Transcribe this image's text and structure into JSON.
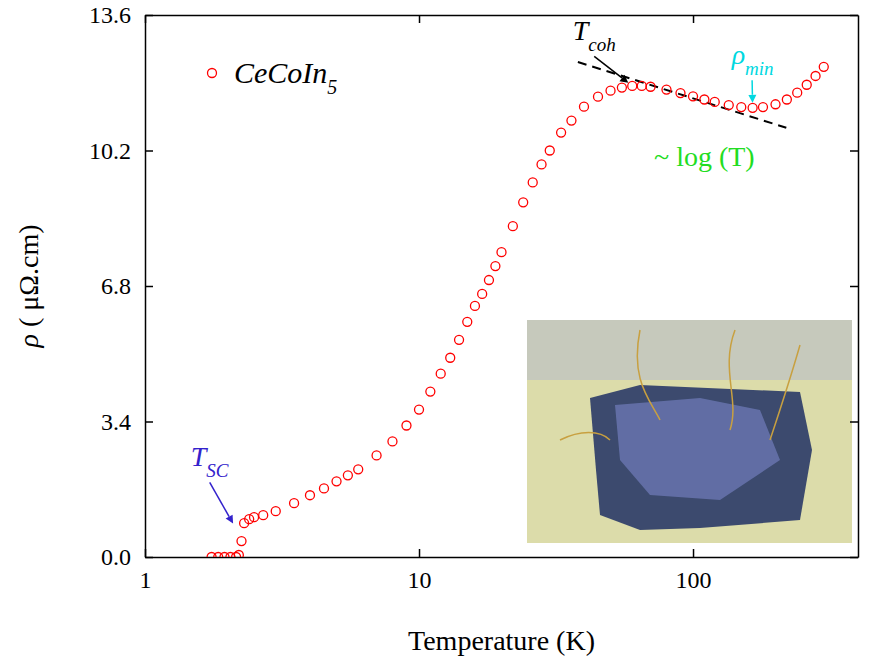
{
  "chart_data": {
    "type": "scatter",
    "x_label": "Temperature (K)",
    "y_label": "ρ ( μΩ.cm)",
    "log": "x",
    "xlim": [
      1,
      400
    ],
    "xticks": [
      1,
      10,
      100
    ],
    "ylim": [
      0,
      13.6
    ],
    "yticks": [
      {
        "value": 0,
        "label": "0.0"
      },
      3.4,
      6.8,
      10.2,
      13.6
    ],
    "legend": "upper left",
    "series": [
      {
        "name": "CeCoIn5",
        "color": "#ff0000",
        "marker": "circle",
        "x": [
          1.75,
          1.85,
          1.95,
          2.05,
          2.15,
          2.2,
          2.25,
          2.3,
          2.4,
          2.5,
          2.7,
          3.0,
          3.5,
          4.0,
          4.5,
          5.0,
          5.5,
          6,
          7,
          8,
          9,
          10,
          11,
          12,
          13,
          14,
          15,
          16,
          17,
          18,
          19,
          20,
          22,
          24,
          26,
          28,
          30,
          33,
          36,
          40,
          45,
          50,
          55,
          60,
          65,
          70,
          80,
          90,
          100,
          110,
          120,
          135,
          150,
          165,
          180,
          200,
          220,
          240,
          260,
          280,
          300
        ],
        "values": [
          0,
          0,
          0,
          0,
          0,
          0.05,
          0.4,
          0.85,
          0.95,
          1.0,
          1.05,
          1.15,
          1.35,
          1.55,
          1.72,
          1.9,
          2.05,
          2.2,
          2.55,
          2.9,
          3.3,
          3.7,
          4.15,
          4.6,
          5.0,
          5.45,
          5.9,
          6.3,
          6.6,
          6.95,
          7.3,
          7.65,
          8.3,
          8.9,
          9.4,
          9.85,
          10.2,
          10.65,
          10.95,
          11.3,
          11.55,
          11.7,
          11.78,
          11.82,
          11.82,
          11.8,
          11.73,
          11.64,
          11.56,
          11.48,
          11.42,
          11.34,
          11.29,
          11.27,
          11.29,
          11.36,
          11.48,
          11.65,
          11.85,
          12.07,
          12.3
        ]
      }
    ],
    "fit": {
      "x": [
        38,
        219
      ],
      "values": [
        12.42,
        10.77
      ],
      "color": "#000000",
      "line_style": "dashed"
    },
    "annotations": [
      {
        "text": "T",
        "subscript": "SC",
        "x": 2.14,
        "y": 0.73,
        "color": "#3322cc"
      },
      {
        "text": "T",
        "subscript": "coh",
        "x": 60,
        "y": 11.82,
        "color": "#000000"
      },
      {
        "text": "ρ",
        "subscript": "min",
        "x": 165,
        "y": 11.27,
        "color": "#00d8e0"
      },
      {
        "text": "~ log (T)",
        "x": 110,
        "y": 9.96,
        "color": "#22dd22"
      }
    ]
  }
}
